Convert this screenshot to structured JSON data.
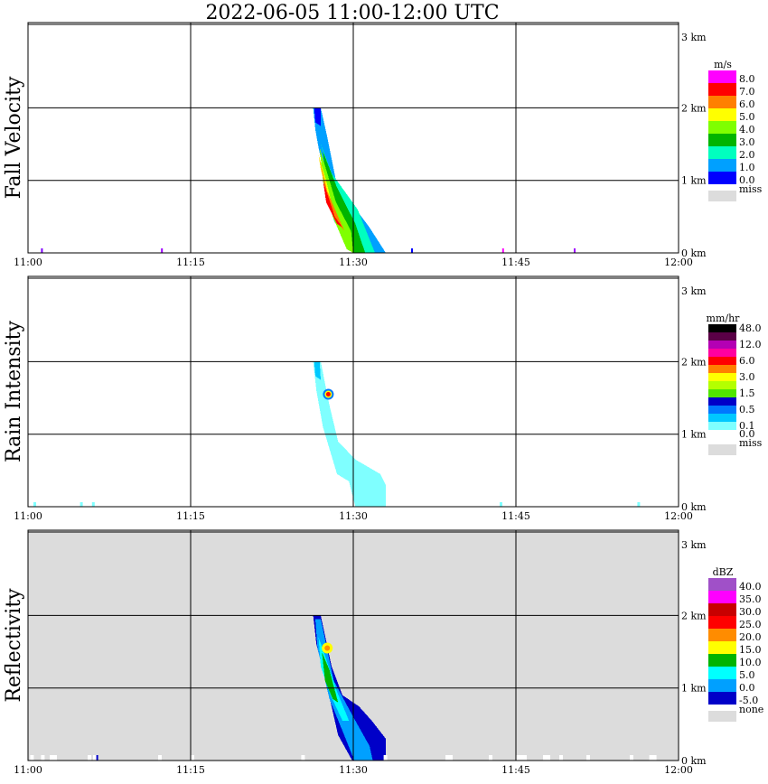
{
  "title": "2022-06-05   11:00-12:00 UTC",
  "x_ticks": [
    "11:00",
    "11:15",
    "11:30",
    "11:45",
    "12:00"
  ],
  "y_ticks": [
    "0 km",
    "1 km",
    "2 km",
    "3 km"
  ],
  "panels": [
    {
      "id": "fall-velocity",
      "label": "Fall Velocity",
      "background": "#ffffff",
      "colorbar": {
        "unit": "m/s",
        "entries": [
          {
            "label": "8.0",
            "color": "#ff00ff"
          },
          {
            "label": "7.0",
            "color": "#ff0000"
          },
          {
            "label": "6.0",
            "color": "#ff7f00"
          },
          {
            "label": "5.0",
            "color": "#ffff00"
          },
          {
            "label": "4.0",
            "color": "#7fff00"
          },
          {
            "label": "3.0",
            "color": "#00b400"
          },
          {
            "label": "2.0",
            "color": "#00ffbf"
          },
          {
            "label": "1.0",
            "color": "#00a0ff"
          },
          {
            "label": "0.0",
            "color": "#0000ff"
          }
        ],
        "missing": {
          "label": "miss",
          "color": "#dcdcdc"
        }
      }
    },
    {
      "id": "rain-intensity",
      "label": "Rain Intensity",
      "background": "#ffffff",
      "colorbar": {
        "unit": "mm/hr",
        "entries": [
          {
            "label": "48.0",
            "color": "#000000"
          },
          {
            "label": "",
            "color": "#5a0046"
          },
          {
            "label": "12.0",
            "color": "#b400b4"
          },
          {
            "label": "",
            "color": "#ff00a0"
          },
          {
            "label": "6.0",
            "color": "#ff0000"
          },
          {
            "label": "",
            "color": "#ff7f00"
          },
          {
            "label": "3.0",
            "color": "#ffff00"
          },
          {
            "label": "",
            "color": "#b4ff00"
          },
          {
            "label": "1.5",
            "color": "#50e600"
          },
          {
            "label": "",
            "color": "#0000c8"
          },
          {
            "label": "0.5",
            "color": "#0078ff"
          },
          {
            "label": "",
            "color": "#00c8ff"
          },
          {
            "label": "0.1",
            "color": "#7fffff"
          },
          {
            "label": "0.0",
            "color": "#ffffff"
          }
        ],
        "missing": {
          "label": "miss",
          "color": "#dcdcdc"
        }
      }
    },
    {
      "id": "reflectivity",
      "label": "Reflectivity",
      "background": "#dcdcdc",
      "colorbar": {
        "unit": "dBZ",
        "entries": [
          {
            "label": "40.0",
            "color": "#a050c8"
          },
          {
            "label": "35.0",
            "color": "#ff00ff"
          },
          {
            "label": "30.0",
            "color": "#c80000"
          },
          {
            "label": "25.0",
            "color": "#ff0000"
          },
          {
            "label": "20.0",
            "color": "#ff8c00"
          },
          {
            "label": "15.0",
            "color": "#ffff00"
          },
          {
            "label": "10.0",
            "color": "#00b400"
          },
          {
            "label": "5.0",
            "color": "#00ffff"
          },
          {
            "label": "0.0",
            "color": "#00a0ff"
          },
          {
            "label": "-5.0",
            "color": "#0000c8"
          }
        ],
        "missing": {
          "label": "none",
          "color": "#dcdcdc"
        }
      }
    }
  ],
  "chart_data": {
    "type": "heatmap",
    "xlim": [
      "11:00",
      "12:00"
    ],
    "ylim": [
      0,
      3.2
    ],
    "x_unit": "UTC",
    "y_unit": "km",
    "echo": {
      "time_start": "11:26.5",
      "time_end": "11:33",
      "top_height_km": 2.0,
      "spine": [
        {
          "t": 26.6,
          "h": 2.0
        },
        {
          "t": 27.2,
          "h": 1.6
        },
        {
          "t": 28.0,
          "h": 1.1
        },
        {
          "t": 29.2,
          "h": 0.5
        },
        {
          "t": 30.3,
          "h": 0.0
        }
      ]
    }
  }
}
